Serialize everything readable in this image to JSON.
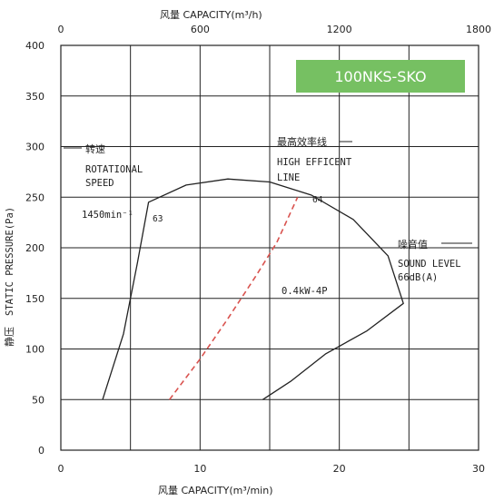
{
  "chart_data": {
    "type": "line",
    "badge": "100NKS-SKO",
    "top_axis": {
      "title": "风量   CAPACITY(m³/h)",
      "ticks": [
        "0",
        "600",
        "1200",
        "1800"
      ],
      "range": [
        0,
        1800
      ]
    },
    "x_axis": {
      "title": "风量   CAPACITY(m³/min)",
      "ticks": [
        "0",
        "10",
        "20",
        "30"
      ],
      "range": [
        0,
        30
      ]
    },
    "y_axis": {
      "title_cn": "静压",
      "title_en": "STATIC PRESSURE(Pa)",
      "ticks": [
        "0",
        "50",
        "100",
        "150",
        "200",
        "250",
        "300",
        "350",
        "400"
      ],
      "range": [
        0,
        400
      ]
    },
    "grid": true,
    "annotations": {
      "rotational_cn": "转速",
      "rotational_en1": "ROTATIONAL",
      "rotational_en2": "SPEED",
      "speed": "1450min⁻¹",
      "label_63": "63",
      "efficiency_cn": "最高效率线",
      "efficiency_en1": "HIGH EFFICENT",
      "efficiency_en2": "LINE",
      "label_64": "64",
      "power": "0.4kW-4P",
      "sound_cn": "噪音值",
      "sound_en": "SOUND LEVEL",
      "sound_value": "66dB(A)"
    },
    "series": [
      {
        "style": "solid",
        "color": "#222222",
        "points": [
          [
            3.0,
            50
          ],
          [
            4.5,
            115
          ],
          [
            5.5,
            185
          ],
          [
            6.3,
            245
          ],
          [
            9,
            262
          ],
          [
            12,
            268
          ],
          [
            15,
            265
          ],
          [
            18,
            252
          ],
          [
            21,
            228
          ],
          [
            23.5,
            192
          ],
          [
            24.6,
            145
          ],
          [
            22,
            118
          ],
          [
            19,
            95
          ],
          [
            16.5,
            68
          ],
          [
            14.5,
            50
          ]
        ]
      },
      {
        "style": "dashed",
        "color": "#d9534f",
        "points": [
          [
            7.8,
            50
          ],
          [
            10,
            90
          ],
          [
            12,
            130
          ],
          [
            14,
            172
          ],
          [
            15.5,
            205
          ],
          [
            17,
            250
          ]
        ]
      }
    ]
  },
  "colors": {
    "badge_bg": "#76c062",
    "badge_text": "#ffffff",
    "axis": "#222222",
    "efficiency_line": "#d9534f"
  }
}
